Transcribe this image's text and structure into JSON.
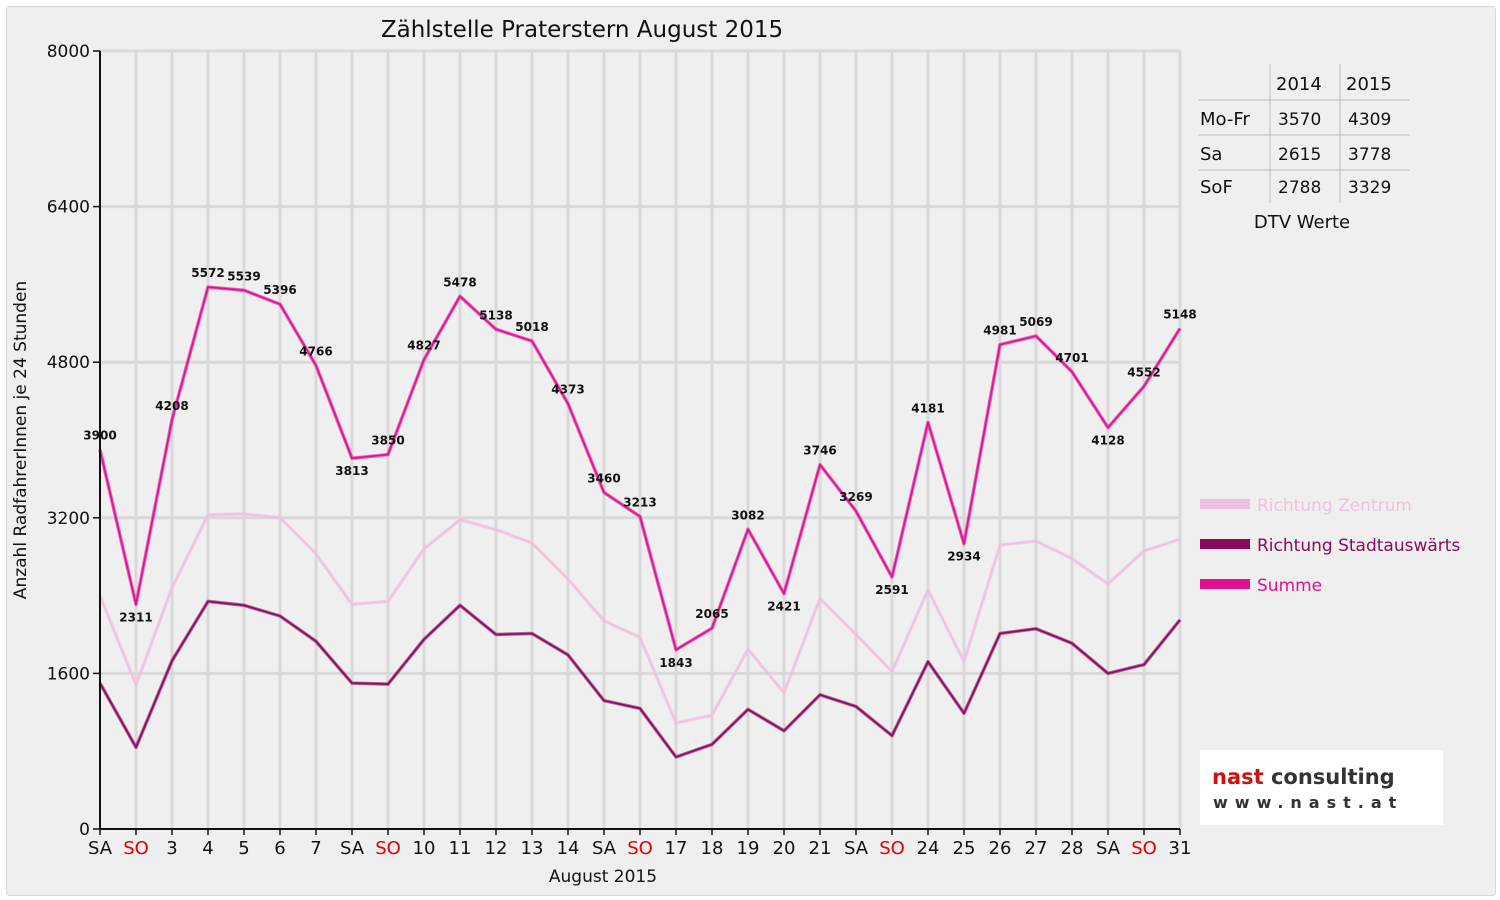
{
  "chart_data": {
    "type": "line",
    "title": "Zählstelle Praterstern August 2015",
    "xlabel": "August 2015",
    "ylabel": "Anzahl RadfahrerInnen je 24 Stunden",
    "ylim": [
      0,
      8000
    ],
    "yticks": [
      "0",
      "1600",
      "3200",
      "4800",
      "6400",
      "8000"
    ],
    "grid": true,
    "legend_position": "right",
    "categories": [
      "SA",
      "SO",
      "3",
      "4",
      "5",
      "6",
      "7",
      "SA",
      "SO",
      "10",
      "11",
      "12",
      "13",
      "14",
      "SA",
      "SO",
      "17",
      "18",
      "19",
      "20",
      "21",
      "SA",
      "SO",
      "24",
      "25",
      "26",
      "27",
      "28",
      "SA",
      "SO",
      "31"
    ],
    "weekend_label_color": "#e00000",
    "series": [
      {
        "name": "Richtung Zentrum",
        "color": "#f0c0e0",
        "values": [
          2400,
          1480,
          2480,
          3230,
          3240,
          3200,
          2830,
          2310,
          2340,
          2880,
          3180,
          3080,
          2940,
          2570,
          2140,
          1970,
          1090,
          1170,
          1850,
          1400,
          2370,
          2000,
          1620,
          2460,
          1720,
          2920,
          2960,
          2780,
          2520,
          2860,
          2980
        ],
        "show_labels": false
      },
      {
        "name": "Richtung Stadtauswärts",
        "color": "#8a0a5e",
        "values": [
          1500,
          840,
          1730,
          2340,
          2300,
          2190,
          1930,
          1500,
          1490,
          1950,
          2300,
          2000,
          2010,
          1790,
          1320,
          1240,
          740,
          870,
          1230,
          1010,
          1380,
          1260,
          960,
          1720,
          1190,
          2010,
          2060,
          1910,
          1600,
          1690,
          2150
        ],
        "show_labels": false
      },
      {
        "name": "Summe",
        "color": "#e0118f",
        "values": [
          3900,
          2311,
          4208,
          5572,
          5539,
          5396,
          4766,
          3813,
          3850,
          4827,
          5478,
          5138,
          5018,
          4373,
          3460,
          3213,
          1843,
          2065,
          3082,
          2421,
          3746,
          3269,
          2591,
          4181,
          2934,
          4981,
          5069,
          4701,
          4128,
          4552,
          5148
        ],
        "data_labels": [
          "3900",
          "2311",
          "4208",
          "5572",
          "5539",
          "5396",
          "4766",
          "3813",
          "3850",
          "4827",
          "5478",
          "5138",
          "5018",
          "4373",
          "3460",
          "3213",
          "1843",
          "2065",
          "3082",
          "2421",
          "3746",
          "3269",
          "2591",
          "4181",
          "2934",
          "4981",
          "5069",
          "4701",
          "4128",
          "4552",
          "5148"
        ],
        "show_labels": true
      }
    ]
  },
  "dtv_table": {
    "caption": "DTV Werte",
    "columns": [
      "2014",
      "2015"
    ],
    "rows": [
      {
        "label": "Mo-Fr",
        "values": [
          "3570",
          "4309"
        ]
      },
      {
        "label": "Sa",
        "values": [
          "2615",
          "3778"
        ]
      },
      {
        "label": "SoF",
        "values": [
          "2788",
          "3329"
        ]
      }
    ]
  },
  "logo": {
    "name": "nast consulting",
    "url": "www.nast.at"
  },
  "colors": {
    "axis": "#111111",
    "grid": "#d9d9d9",
    "logo_red": "#cc1111"
  }
}
